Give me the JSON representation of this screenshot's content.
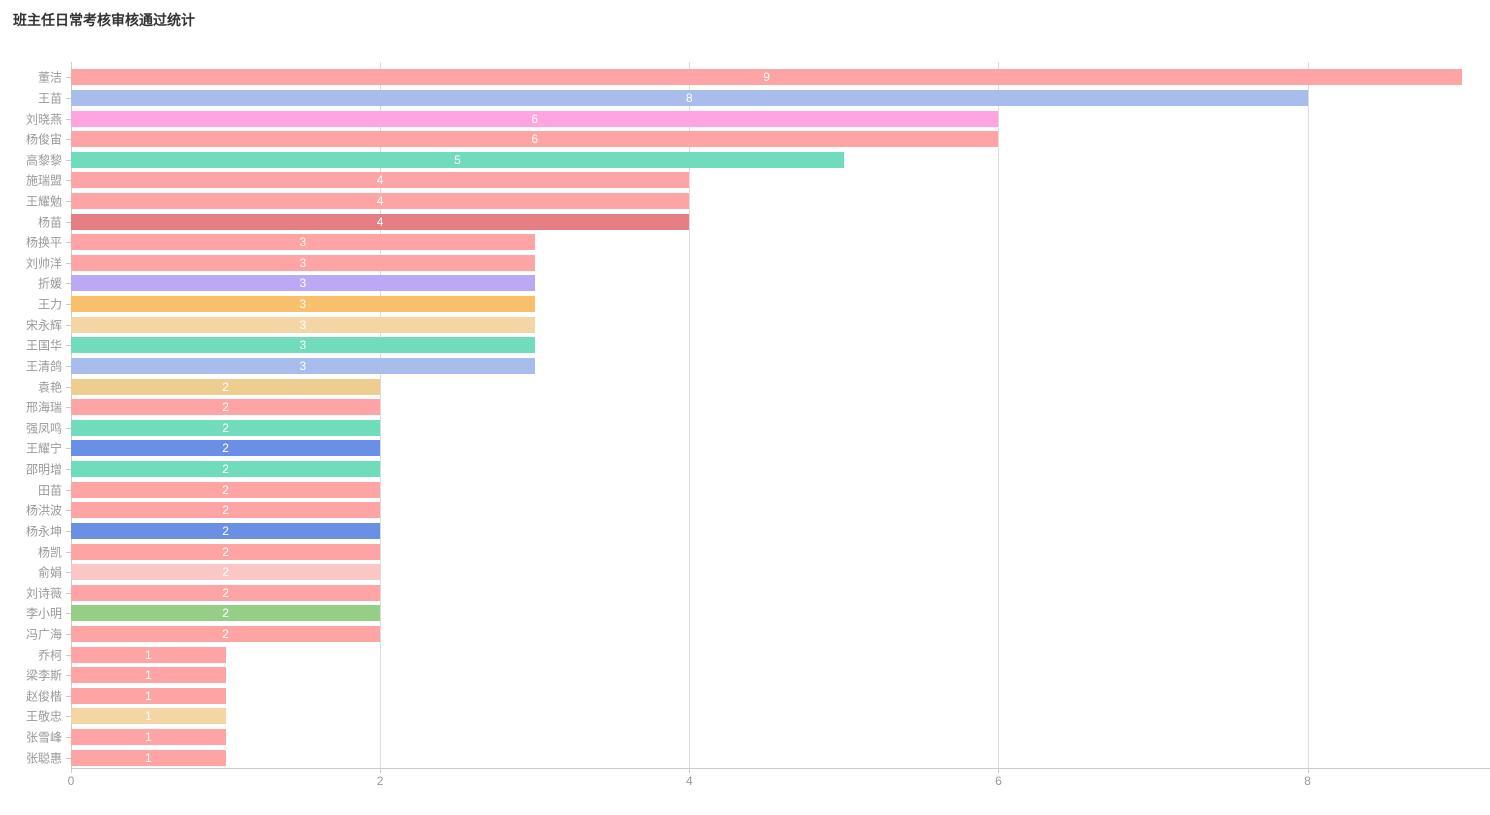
{
  "title": "班主任日常考核审核通过统计",
  "chart_data": {
    "type": "bar",
    "orientation": "horizontal",
    "title": "班主任日常考核审核通过统计",
    "xlabel": "",
    "ylabel": "",
    "categories": [
      "董洁",
      "王苗",
      "刘晓燕",
      "杨俊宙",
      "高黎黎",
      "施瑞盟",
      "王耀勉",
      "杨苗",
      "杨换平",
      "刘帅洋",
      "折媛",
      "王力",
      "宋永辉",
      "王国华",
      "王清鸽",
      "袁艳",
      "邢海瑞",
      "强凤鸣",
      "王耀宁",
      "邵明增",
      "田苗",
      "杨洪波",
      "杨永坤",
      "杨凯",
      "俞娟",
      "刘诗薇",
      "李小明",
      "冯广海",
      "乔柯",
      "梁李斯",
      "赵俊楷",
      "王敬忠",
      "张雪峰",
      "张聪惠"
    ],
    "values": [
      9,
      8,
      6,
      6,
      5,
      4,
      4,
      4,
      3,
      3,
      3,
      3,
      3,
      3,
      3,
      2,
      2,
      2,
      2,
      2,
      2,
      2,
      2,
      2,
      2,
      2,
      2,
      2,
      1,
      1,
      1,
      1,
      1,
      1
    ],
    "bar_colors": [
      "#FFA4A4",
      "#A9BDEC",
      "#FFA3E1",
      "#FFA4A4",
      "#70DCBC",
      "#FFA4A4",
      "#FFA4A4",
      "#E57F84",
      "#FFA4A4",
      "#FFA4A4",
      "#BCA9F5",
      "#F8C06B",
      "#F4D6A4",
      "#70DCBC",
      "#A9BDEC",
      "#EECD90",
      "#FFA4A4",
      "#70DCBC",
      "#6A90E6",
      "#70DCBC",
      "#FFA4A4",
      "#FFA4A4",
      "#6A90E6",
      "#FFA4A4",
      "#FBC6C6",
      "#FFA4A4",
      "#95CF87",
      "#FFA4A4",
      "#FFA4A4",
      "#FFA4A4",
      "#FFA4A4",
      "#F4D6A4",
      "#FFA4A4",
      "#FFA4A4"
    ],
    "x_ticks": [
      0,
      2,
      4,
      6,
      8
    ],
    "xlim": [
      0,
      9.18
    ],
    "grid": true,
    "value_labels_position": "inside-center",
    "value_label_color": "#ffffff",
    "axis_label_color": "#999999",
    "gridline_color": "#dddddd",
    "axis_line_color": "#cccccc",
    "title_color": "#333333",
    "legend": null
  }
}
